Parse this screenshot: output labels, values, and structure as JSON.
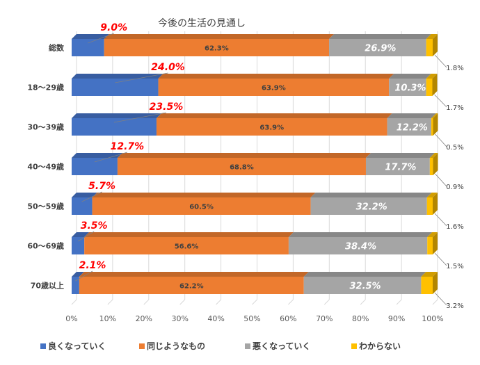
{
  "chart_data": {
    "type": "bar",
    "orientation": "horizontal",
    "stacked": "percent",
    "title": "今後の生活の見通し",
    "categories": [
      "総数",
      "18～29歳",
      "30～39歳",
      "40～49歳",
      "50～59歳",
      "60～69歳",
      "70歳以上"
    ],
    "x_ticks": [
      "0%",
      "10%",
      "20%",
      "30%",
      "40%",
      "50%",
      "60%",
      "70%",
      "80%",
      "90%",
      "100%"
    ],
    "xlim": [
      0,
      100
    ],
    "grid": true,
    "legend_position": "bottom",
    "series": [
      {
        "name": "良くなっていく",
        "color": "#4472c4",
        "values": [
          9.0,
          24.0,
          23.5,
          12.7,
          5.7,
          3.5,
          2.1
        ],
        "labels": [
          "9.0%",
          "24.0%",
          "23.5%",
          "12.7%",
          "5.7%",
          "3.5%",
          "2.1%"
        ]
      },
      {
        "name": "同じようなもの",
        "color": "#ed7d31",
        "values": [
          62.3,
          63.9,
          63.9,
          68.8,
          60.5,
          56.6,
          62.2
        ],
        "labels": [
          "62.3%",
          "63.9%",
          "63.9%",
          "68.8%",
          "60.5%",
          "56.6%",
          "62.2%"
        ]
      },
      {
        "name": "悪くなっていく",
        "color": "#a5a5a5",
        "values": [
          26.9,
          10.3,
          12.2,
          17.7,
          32.2,
          38.4,
          32.5
        ],
        "labels": [
          "26.9%",
          "10.3%",
          "12.2%",
          "17.7%",
          "32.2%",
          "38.4%",
          "32.5%"
        ]
      },
      {
        "name": "わからない",
        "color": "#ffc000",
        "values": [
          1.8,
          1.7,
          0.5,
          0.9,
          1.6,
          1.5,
          3.2
        ],
        "labels": [
          "1.8%",
          "1.7%",
          "0.5%",
          "0.9%",
          "1.6%",
          "1.5%",
          "3.2%"
        ]
      }
    ]
  }
}
